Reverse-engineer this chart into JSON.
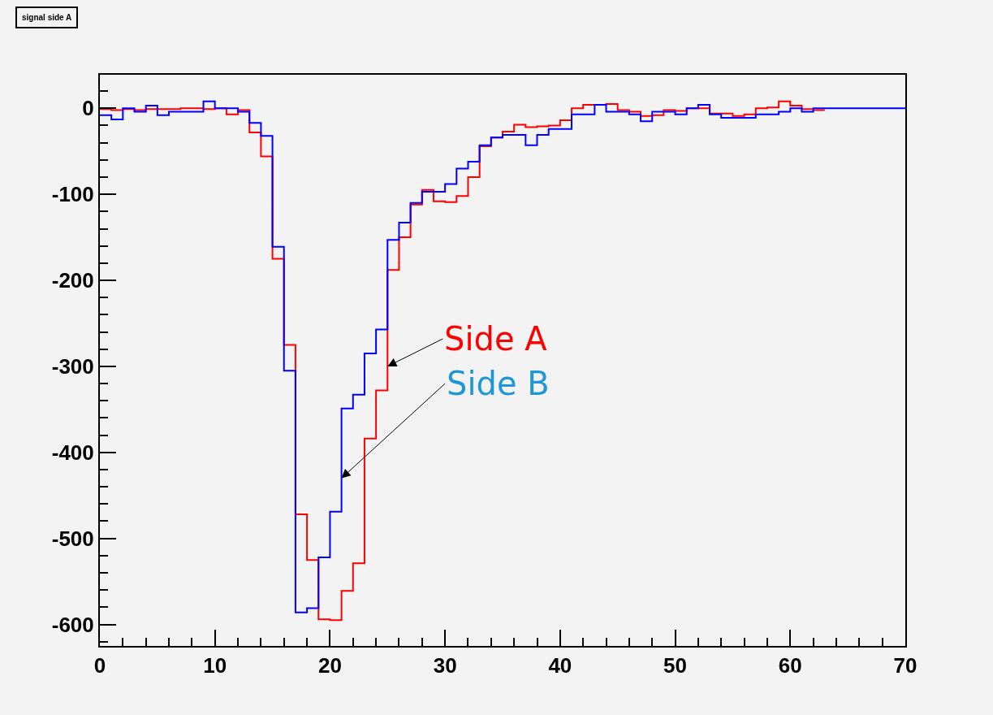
{
  "chart_data": {
    "type": "histogram",
    "title": "signal side A",
    "bins": [
      0,
      1,
      2,
      3,
      4,
      5,
      6,
      7,
      8,
      9,
      10,
      11,
      12,
      13,
      14,
      15,
      16,
      17,
      18,
      19,
      20,
      21,
      22,
      23,
      24,
      25,
      26,
      27,
      28,
      29,
      30,
      31,
      32,
      33,
      34,
      35,
      36,
      37,
      38,
      39,
      40,
      41,
      42,
      43,
      44,
      45,
      46,
      47,
      48,
      49,
      50,
      51,
      52,
      53,
      54,
      55,
      56,
      57,
      58,
      59,
      60,
      61,
      62,
      63,
      64,
      65,
      66,
      67,
      68,
      69,
      70
    ],
    "series": [
      {
        "color": "#ff0000",
        "bins": [
          0,
          1,
          2,
          3,
          4,
          5,
          6,
          7,
          8,
          9,
          10,
          11,
          12,
          13,
          14,
          15,
          16,
          17,
          18,
          19,
          20,
          21,
          22,
          23,
          24,
          25,
          26,
          27,
          28,
          29,
          30,
          31,
          32,
          33,
          34,
          35,
          36,
          37,
          38,
          39,
          40,
          41,
          42,
          43,
          44,
          45,
          46,
          47,
          48,
          49,
          50,
          51,
          52,
          53,
          54,
          55,
          56,
          57,
          58,
          59,
          60,
          61,
          62,
          63
        ],
        "values": [
          -1,
          -2,
          -1,
          -2,
          -1,
          -1,
          -1,
          0,
          0,
          -1,
          0,
          -7,
          -2,
          -28,
          -56,
          -175,
          -275,
          -472,
          -525,
          -594,
          -595,
          -561,
          -529,
          -384,
          -328,
          -188,
          -150,
          -112,
          -95,
          -108,
          -109,
          -102,
          -80,
          -44,
          -34,
          -27,
          -19,
          -22,
          -21,
          -20,
          -14,
          0,
          4,
          4,
          5,
          -2,
          -4,
          -9,
          -8,
          -2,
          -3,
          0,
          0,
          -6,
          -6,
          -9,
          -7,
          0,
          1,
          8,
          3,
          -1,
          -2
        ]
      },
      {
        "color": "#0000ff",
        "values": [
          -8,
          -13,
          0,
          -4,
          3,
          -8,
          -4,
          -4,
          -4,
          8,
          0,
          0,
          -4,
          -17,
          -32,
          -161,
          -305,
          -586,
          -581,
          -522,
          -469,
          -349,
          -333,
          -285,
          -257,
          -153,
          -133,
          -110,
          -97,
          -97,
          -88,
          -70,
          -62,
          -43,
          -34,
          -31,
          -31,
          -43,
          -31,
          -24,
          -24,
          -7,
          -7,
          4,
          -4,
          -4,
          -7,
          -15,
          -4,
          -4,
          -7,
          0,
          4,
          -7,
          -11,
          -11,
          -11,
          -7,
          -7,
          -4,
          0,
          -4,
          0,
          0,
          0,
          0,
          0,
          0,
          0,
          0
        ]
      }
    ],
    "annotations": [
      {
        "text": "Side A",
        "x": 25,
        "y": -300
      },
      {
        "text": "Side B",
        "x": 21,
        "y": -430
      }
    ],
    "xlim": [
      0,
      70
    ],
    "xticks": [
      0,
      10,
      20,
      30,
      40,
      50,
      60,
      70
    ],
    "ylim": [
      -625,
      39
    ],
    "yticks": [
      0,
      -100,
      -200,
      -300,
      -400,
      -500,
      -600
    ],
    "grid": false
  }
}
